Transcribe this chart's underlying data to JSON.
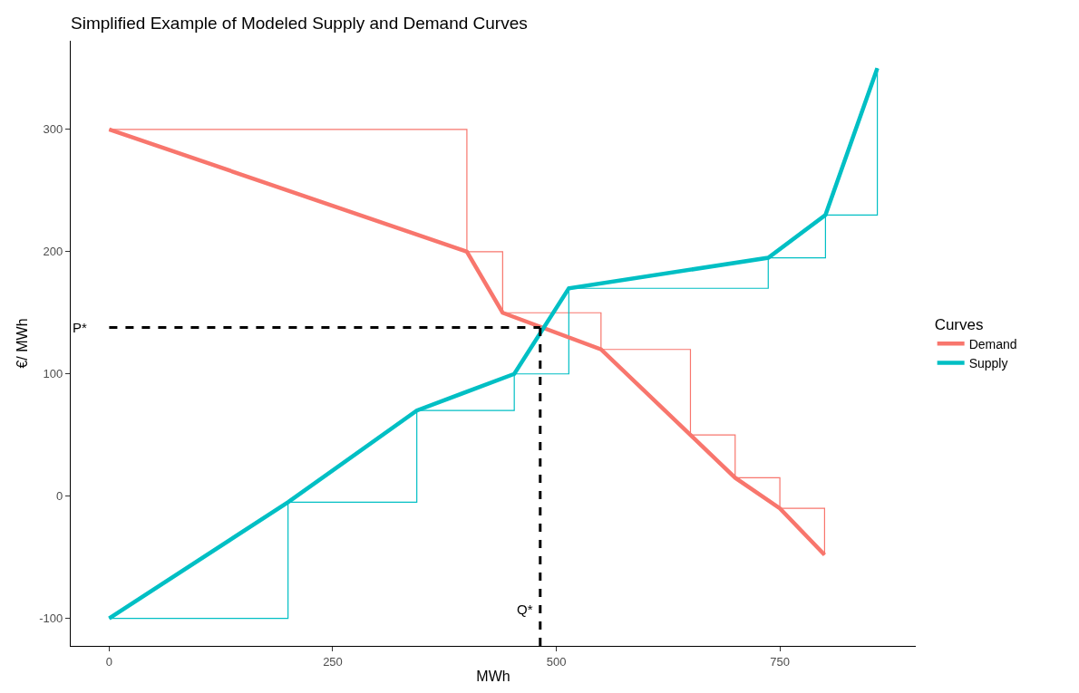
{
  "chart_data": {
    "type": "line",
    "title": "Simplified Example of Modeled Supply and Demand Curves",
    "xlabel": "MWh",
    "ylabel": "€/ MWh",
    "legend_title": "Curves",
    "legend": "right",
    "grid": false,
    "marker": "none",
    "line_style": "solid",
    "xlim": [
      -43,
      902
    ],
    "ylim": [
      -122.5,
      372.5
    ],
    "xticks": [
      0,
      250,
      500,
      750
    ],
    "yticks": [
      -100,
      0,
      100,
      200,
      300
    ],
    "series": [
      {
        "name": "Demand",
        "color": "#f8766d",
        "x": [
          0,
          400,
          440,
          550,
          650,
          700,
          750,
          800
        ],
        "values": [
          300,
          200,
          150,
          120,
          50,
          15,
          -10,
          -48
        ]
      },
      {
        "name": "Supply",
        "color": "#00bfc4",
        "x": [
          0,
          200,
          344,
          453,
          514,
          737,
          801,
          859
        ],
        "values": [
          -100,
          -5,
          70,
          100,
          170,
          195,
          230,
          350
        ]
      },
      {
        "color": "#f8766d",
        "type": "step",
        "x": [
          0,
          400,
          440,
          550,
          650,
          700,
          750,
          800
        ],
        "values": [
          300,
          200,
          150,
          120,
          50,
          15,
          -10,
          -48
        ]
      },
      {
        "color": "#00bfc4",
        "type": "step",
        "x": [
          0,
          200,
          344,
          453,
          514,
          737,
          801,
          859
        ],
        "values": [
          -100,
          -5,
          70,
          100,
          170,
          195,
          230,
          350
        ]
      }
    ],
    "ref_lines": [
      {
        "axis": "y",
        "value": 138,
        "label": "P*",
        "color": "#000000",
        "line_style": "dashed"
      },
      {
        "axis": "x",
        "value": 482,
        "label": "Q*",
        "color": "#000000",
        "line_style": "dashed"
      }
    ]
  }
}
